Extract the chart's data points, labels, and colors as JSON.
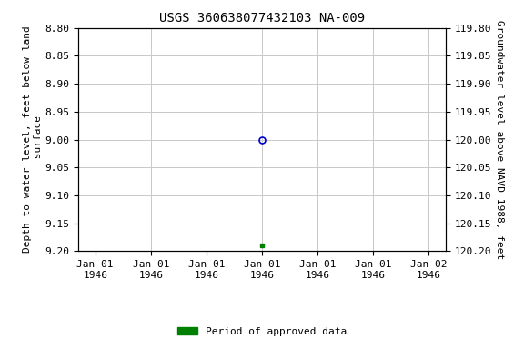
{
  "title": "USGS 360638077432103 NA-009",
  "ylabel_left": "Depth to water level, feet below land\n surface",
  "ylabel_right": "Groundwater level above NAVD 1988, feet",
  "ylim_left": [
    8.8,
    9.2
  ],
  "ylim_right": [
    120.2,
    119.8
  ],
  "yticks_left": [
    8.8,
    8.85,
    8.9,
    8.95,
    9.0,
    9.05,
    9.1,
    9.15,
    9.2
  ],
  "yticks_right": [
    120.2,
    120.15,
    120.1,
    120.05,
    120.0,
    119.95,
    119.9,
    119.85,
    119.8
  ],
  "data_point_blue": {
    "date_num": 0.5,
    "value": 9.0
  },
  "data_point_green": {
    "date_num": 0.5,
    "value": 9.19
  },
  "xlim": [
    -0.05,
    1.05
  ],
  "xtick_positions": [
    0.0,
    0.1667,
    0.3333,
    0.5,
    0.6667,
    0.8333,
    1.0
  ],
  "xtick_labels": [
    "Jan 01\n1946",
    "Jan 01\n1946",
    "Jan 01\n1946",
    "Jan 01\n1946",
    "Jan 01\n1946",
    "Jan 01\n1946",
    "Jan 02\n1946"
  ],
  "background_color": "#ffffff",
  "grid_color": "#c8c8c8",
  "title_fontsize": 10,
  "axis_label_fontsize": 8,
  "tick_fontsize": 8,
  "legend_label": "Period of approved data",
  "legend_color": "#008000",
  "blue_circle_color": "#0000cc",
  "green_square_color": "#008000"
}
